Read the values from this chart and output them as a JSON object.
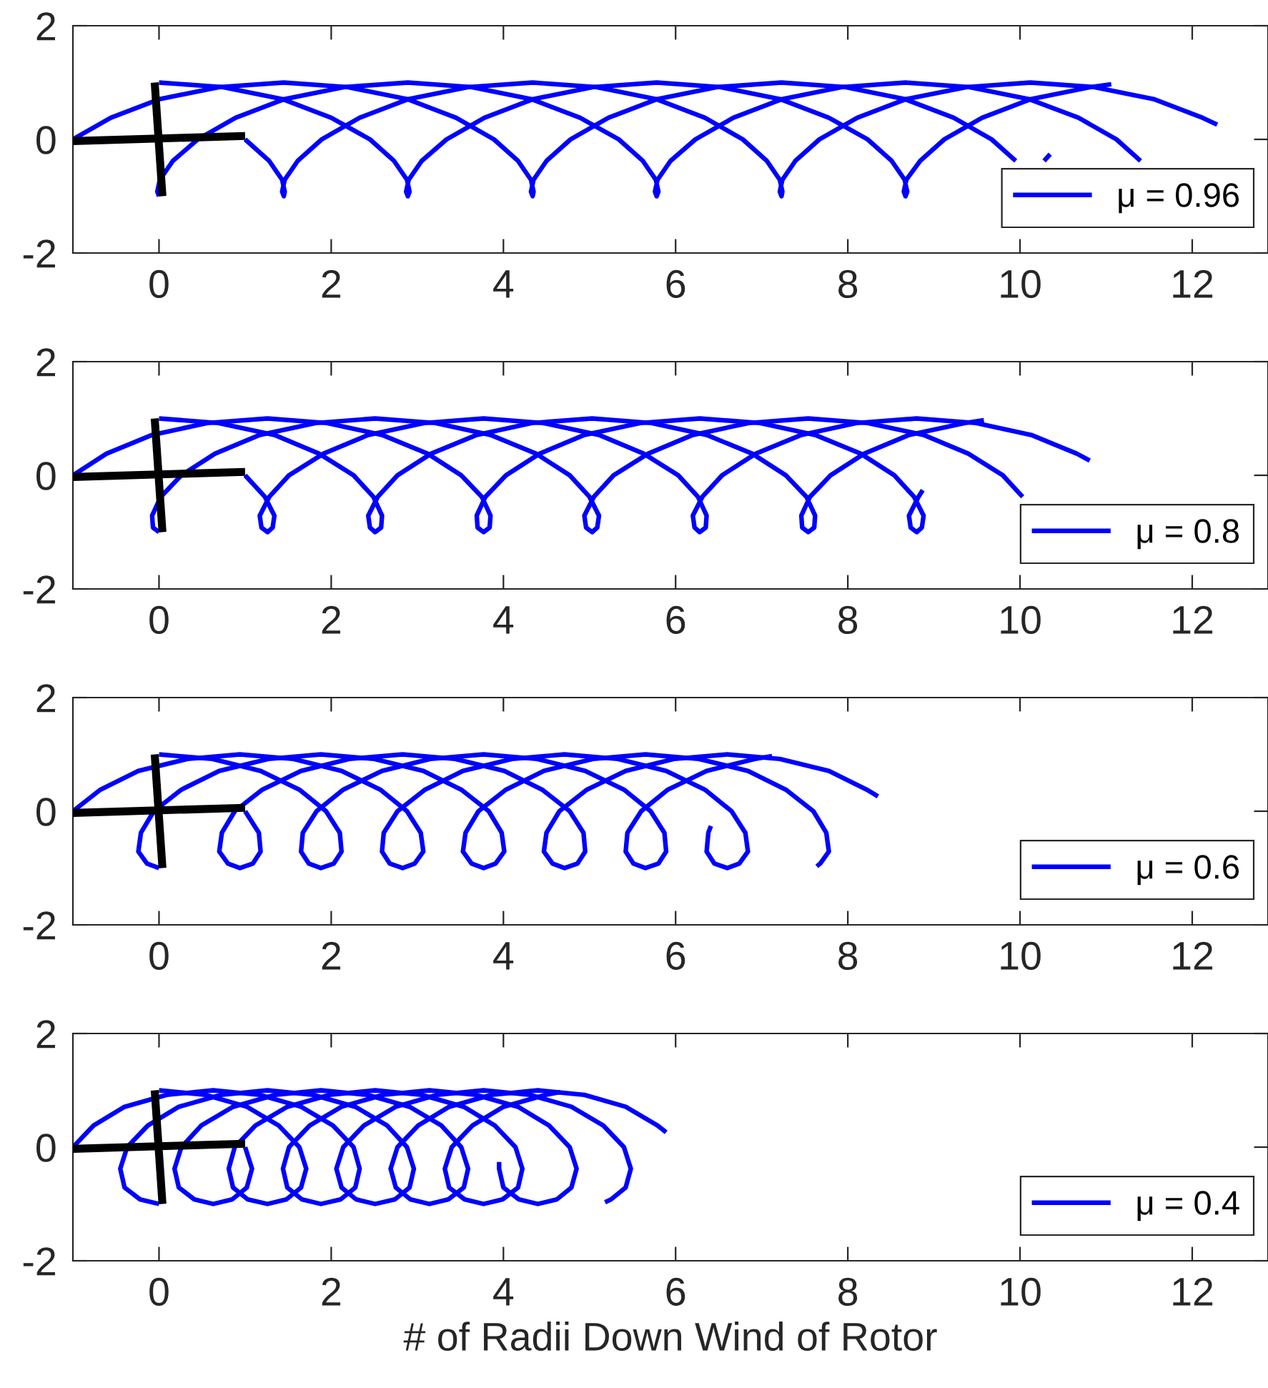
{
  "chart_data": [
    {
      "type": "line",
      "xlim": [
        -1,
        12.88
      ],
      "ylim": [
        -2,
        2
      ],
      "xticks": [
        0,
        2,
        4,
        6,
        8,
        10,
        12
      ],
      "yticks": [
        -2,
        0,
        2
      ],
      "legend": "bottom right",
      "series": [
        {
          "name": "μ = 0.96",
          "color": "#0000ff",
          "x": [
            0,
            0.74,
            1.43,
            2.0,
            2.45,
            2.73,
            2.88,
            2.91,
            2.89,
            2.87,
            2.9,
            3.05,
            3.34,
            3.78,
            4.35,
            5.04,
            5.78,
            6.52,
            7.21,
            7.78,
            8.23,
            8.51,
            8.66,
            8.69,
            8.67,
            8.65,
            8.68,
            8.84,
            9.12,
            9.56,
            10.13,
            10.82,
            11.06
          ],
          "values": [
            1,
            0.92,
            0.71,
            0.38,
            0,
            -0.38,
            -0.71,
            -0.92,
            -1,
            -0.92,
            -0.71,
            -0.38,
            0,
            0.38,
            0.71,
            0.92,
            1,
            0.92,
            0.71,
            0.38,
            0,
            -0.38,
            -0.71,
            -0.92,
            -1,
            -0.92,
            -0.71,
            -0.38,
            0,
            0.38,
            0.71,
            0.92,
            0.97
          ]
        },
        {
          "color": "#0000ff",
          "x": [
            1,
            1.28,
            1.43,
            1.46,
            1.45,
            1.43,
            1.46,
            1.61,
            1.89,
            2.33,
            2.9,
            3.59,
            4.34,
            5.08,
            5.77,
            6.34,
            6.78,
            7.06,
            7.21,
            7.24,
            7.23,
            7.21,
            7.24,
            7.39,
            7.67,
            8.11,
            8.68,
            9.38,
            10.12,
            10.86,
            11.55,
            12.12,
            12.29
          ],
          "values": [
            0,
            -0.38,
            -0.71,
            -0.92,
            -1,
            -0.92,
            -0.71,
            -0.38,
            0,
            0.38,
            0.71,
            0.92,
            1,
            0.92,
            0.71,
            0.38,
            0,
            -0.38,
            -0.71,
            -0.92,
            -1,
            -0.92,
            -0.71,
            -0.38,
            0,
            0.38,
            0.71,
            0.92,
            1,
            0.92,
            0.71,
            0.38,
            0.26
          ]
        },
        {
          "color": "#0000ff",
          "x": [
            0,
            -0.02,
            0.01,
            0.16,
            0.45,
            0.89,
            1.46,
            2.15,
            2.89,
            3.63,
            4.32,
            4.89,
            5.34,
            5.62,
            5.77,
            5.8,
            5.78,
            5.76,
            5.79,
            5.94,
            6.23,
            6.67,
            7.24,
            7.93,
            8.67,
            9.41,
            10.1,
            10.68,
            11.12,
            11.4,
            null,
            null,
            null
          ],
          "values": [
            -1,
            -0.92,
            -0.71,
            -0.38,
            0,
            0.38,
            0.71,
            0.92,
            1,
            0.92,
            0.71,
            0.38,
            0,
            -0.38,
            -0.71,
            -0.92,
            -1,
            -0.92,
            -0.71,
            -0.38,
            0,
            0.38,
            0.71,
            0.92,
            1,
            0.92,
            0.71,
            0.38,
            0,
            -0.38,
            null,
            null,
            null
          ]
        },
        {
          "color": "#0000ff",
          "x": [
            -1,
            -0.56,
            0.01,
            0.7,
            1.45,
            2.19,
            2.88,
            3.45,
            3.89,
            4.17,
            4.32,
            4.35,
            4.34,
            4.32,
            4.35,
            4.5,
            4.78,
            5.22,
            5.79,
            6.48,
            7.23,
            7.97,
            8.66,
            9.23,
            9.67,
            9.95,
            null,
            null,
            null,
            null,
            null,
            10.28,
            10.35
          ],
          "values": [
            0,
            0.38,
            0.71,
            0.92,
            1,
            0.92,
            0.71,
            0.38,
            0,
            -0.38,
            -0.71,
            -0.92,
            -1,
            -0.92,
            -0.71,
            -0.38,
            0,
            0.38,
            0.71,
            0.92,
            1,
            0.92,
            0.71,
            0.38,
            0,
            -0.38,
            null,
            null,
            null,
            null,
            null,
            -0.38,
            -0.26
          ]
        },
        {
          "color": "#000000",
          "x": [
            -1,
            1
          ],
          "values": [
            -0.03,
            0.06
          ]
        },
        {
          "color": "#000000",
          "x": [
            -0.05,
            0.04
          ],
          "values": [
            1,
            -1
          ]
        }
      ]
    },
    {
      "type": "line",
      "xlim": [
        -1,
        12.88
      ],
      "ylim": [
        -2,
        2
      ],
      "xticks": [
        0,
        2,
        4,
        6,
        8,
        10,
        12
      ],
      "yticks": [
        -2,
        0,
        2
      ],
      "legend": "bottom right",
      "series": [
        {
          "name": "μ = 0.8",
          "color": "#0000ff",
          "x": [
            0,
            0.69,
            1.34,
            1.86,
            2.26,
            2.49,
            2.59,
            2.58,
            2.51,
            2.45,
            2.43,
            2.54,
            2.77,
            3.16,
            3.69,
            4.33,
            5.03,
            5.72,
            6.36,
            6.89,
            7.28,
            7.52,
            7.62,
            7.61,
            7.54,
            7.47,
            7.46,
            7.56,
            7.8,
            8.19,
            8.71,
            9.36,
            9.58
          ],
          "values": [
            1,
            0.92,
            0.71,
            0.38,
            0,
            -0.38,
            -0.71,
            -0.92,
            -1,
            -0.92,
            -0.71,
            -0.38,
            0,
            0.38,
            0.71,
            0.92,
            1,
            0.92,
            0.71,
            0.38,
            0,
            -0.38,
            -0.71,
            -0.92,
            -1,
            -0.92,
            -0.71,
            -0.38,
            0,
            0.38,
            0.71,
            0.92,
            0.97
          ]
        },
        {
          "color": "#0000ff",
          "x": [
            1,
            1.23,
            1.34,
            1.32,
            1.26,
            1.19,
            1.17,
            1.28,
            1.51,
            1.91,
            2.43,
            3.08,
            3.77,
            4.46,
            5.11,
            5.63,
            6.03,
            6.26,
            6.36,
            6.35,
            6.28,
            6.22,
            6.2,
            6.31,
            6.54,
            6.93,
            7.46,
            8.1,
            8.8,
            9.49,
            10.13,
            10.66,
            10.81
          ],
          "values": [
            0,
            -0.38,
            -0.71,
            -0.92,
            -1,
            -0.92,
            -0.71,
            -0.38,
            0,
            0.38,
            0.71,
            0.92,
            1,
            0.92,
            0.71,
            0.38,
            0,
            -0.38,
            -0.71,
            -0.92,
            -1,
            -0.92,
            -0.71,
            -0.38,
            0,
            0.38,
            0.71,
            0.92,
            1,
            0.92,
            0.71,
            0.38,
            0.26
          ]
        },
        {
          "color": "#0000ff",
          "x": [
            0,
            -0.07,
            -0.08,
            0.02,
            0.26,
            0.65,
            1.17,
            1.82,
            2.51,
            3.21,
            3.85,
            4.38,
            4.77,
            5.0,
            5.11,
            5.09,
            5.03,
            4.96,
            4.94,
            5.05,
            5.28,
            5.68,
            6.2,
            6.85,
            7.54,
            8.23,
            8.88,
            9.4,
            9.8,
            10.03,
            null,
            null,
            null
          ],
          "values": [
            -1,
            -0.92,
            -0.71,
            -0.38,
            0,
            0.38,
            0.71,
            0.92,
            1,
            0.92,
            0.71,
            0.38,
            0,
            -0.38,
            -0.71,
            -0.92,
            -1,
            -0.92,
            -0.71,
            -0.38,
            0,
            0.38,
            0.71,
            0.92,
            1,
            0.92,
            0.71,
            0.38,
            0,
            -0.38,
            null,
            null,
            null
          ]
        },
        {
          "color": "#0000ff",
          "x": [
            -1,
            -0.61,
            -0.08,
            0.56,
            1.26,
            1.95,
            2.59,
            3.12,
            3.51,
            3.75,
            3.85,
            3.84,
            3.77,
            3.7,
            3.69,
            3.79,
            4.03,
            4.42,
            4.94,
            5.59,
            6.28,
            6.98,
            7.62,
            8.15,
            8.54,
            8.77,
            8.88,
            8.86,
            8.8,
            8.73,
            8.71,
            8.82,
            8.87
          ],
          "values": [
            0,
            0.38,
            0.71,
            0.92,
            1,
            0.92,
            0.71,
            0.38,
            0,
            -0.38,
            -0.71,
            -0.92,
            -1,
            -0.92,
            -0.71,
            -0.38,
            0,
            0.38,
            0.71,
            0.92,
            1,
            0.92,
            0.71,
            0.38,
            0,
            -0.38,
            -0.71,
            -0.92,
            -1,
            -0.92,
            -0.71,
            -0.38,
            -0.26
          ]
        },
        {
          "color": "#000000",
          "x": [
            -1,
            1
          ],
          "values": [
            -0.03,
            0.06
          ]
        },
        {
          "color": "#000000",
          "x": [
            -0.05,
            0.04
          ],
          "values": [
            1,
            -1
          ]
        }
      ]
    },
    {
      "type": "line",
      "xlim": [
        -1,
        12.88
      ],
      "ylim": [
        -2,
        2
      ],
      "xticks": [
        0,
        2,
        4,
        6,
        8,
        10,
        12
      ],
      "yticks": [
        -2,
        0,
        2
      ],
      "legend": "bottom right",
      "series": [
        {
          "name": "μ = 0.6",
          "color": "#0000ff",
          "x": [
            0,
            0.62,
            1.18,
            1.63,
            1.94,
            2.1,
            2.12,
            2.03,
            1.88,
            1.74,
            1.65,
            1.67,
            1.83,
            2.14,
            2.59,
            3.15,
            3.77,
            4.39,
            4.95,
            5.4,
            5.71,
            5.87,
            5.89,
            5.8,
            5.65,
            5.51,
            5.42,
            5.44,
            5.6,
            5.91,
            6.36,
            6.92,
            7.12
          ],
          "values": [
            1,
            0.92,
            0.71,
            0.38,
            0,
            -0.38,
            -0.71,
            -0.92,
            -1,
            -0.92,
            -0.71,
            -0.38,
            0,
            0.38,
            0.71,
            0.92,
            1,
            0.92,
            0.71,
            0.38,
            0,
            -0.38,
            -0.71,
            -0.92,
            -1,
            -0.92,
            -0.71,
            -0.38,
            0,
            0.38,
            0.71,
            0.92,
            0.97
          ]
        },
        {
          "color": "#0000ff",
          "x": [
            1,
            1.16,
            1.18,
            1.09,
            0.94,
            0.8,
            0.7,
            0.73,
            0.88,
            1.2,
            1.65,
            2.21,
            2.83,
            3.44,
            4.01,
            4.45,
            4.77,
            4.93,
            4.95,
            4.86,
            4.71,
            4.57,
            4.47,
            4.5,
            4.65,
            4.97,
            5.42,
            5.98,
            6.6,
            7.21,
            7.78,
            8.22,
            8.35
          ],
          "values": [
            0,
            -0.38,
            -0.71,
            -0.92,
            -1,
            -0.92,
            -0.71,
            -0.38,
            0,
            0.38,
            0.71,
            0.92,
            1,
            0.92,
            0.71,
            0.38,
            0,
            -0.38,
            -0.71,
            -0.92,
            -1,
            -0.92,
            -0.71,
            -0.38,
            0,
            0.38,
            0.71,
            0.92,
            1,
            0.92,
            0.71,
            0.38,
            0.26
          ]
        },
        {
          "color": "#0000ff",
          "x": [
            0,
            -0.14,
            -0.24,
            -0.21,
            -0.06,
            0.26,
            0.7,
            1.27,
            1.88,
            2.5,
            3.07,
            3.51,
            3.83,
            3.98,
            4.01,
            3.91,
            3.77,
            3.63,
            3.53,
            3.56,
            3.71,
            4.03,
            4.47,
            5.04,
            5.65,
            6.27,
            6.84,
            7.28,
            7.6,
            7.75,
            7.78,
            7.68,
            7.64
          ],
          "values": [
            -1,
            -0.92,
            -0.71,
            -0.38,
            0,
            0.38,
            0.71,
            0.92,
            1,
            0.92,
            0.71,
            0.38,
            0,
            -0.38,
            -0.71,
            -0.92,
            -1,
            -0.92,
            -0.71,
            -0.38,
            0,
            0.38,
            0.71,
            0.92,
            1,
            0.92,
            0.71,
            0.38,
            0,
            -0.38,
            -0.71,
            -0.92,
            -0.97
          ]
        },
        {
          "color": "#0000ff",
          "x": [
            -1,
            -0.68,
            -0.24,
            0.33,
            0.94,
            1.56,
            2.12,
            2.57,
            2.88,
            3.04,
            3.07,
            2.97,
            2.83,
            2.68,
            2.59,
            2.61,
            2.77,
            3.09,
            3.53,
            4.1,
            4.71,
            5.33,
            5.89,
            6.34,
            6.65,
            6.81,
            6.84,
            6.74,
            6.6,
            6.45,
            6.36,
            6.38,
            6.41
          ],
          "values": [
            0,
            0.38,
            0.71,
            0.92,
            1,
            0.92,
            0.71,
            0.38,
            0,
            -0.38,
            -0.71,
            -0.92,
            -1,
            -0.92,
            -0.71,
            -0.38,
            0,
            0.38,
            0.71,
            0.92,
            1,
            0.92,
            0.71,
            0.38,
            0,
            -0.38,
            -0.71,
            -0.92,
            -1,
            -0.92,
            -0.71,
            -0.38,
            -0.26
          ]
        },
        {
          "color": "#000000",
          "x": [
            -1,
            1
          ],
          "values": [
            -0.03,
            0.06
          ]
        },
        {
          "color": "#000000",
          "x": [
            -0.05,
            0.04
          ],
          "values": [
            1,
            -1
          ]
        }
      ]
    },
    {
      "type": "line",
      "xlim": [
        -1,
        12.88
      ],
      "ylim": [
        -2,
        2
      ],
      "xticks": [
        0,
        2,
        4,
        6,
        8,
        10,
        12
      ],
      "yticks": [
        -2,
        0,
        2
      ],
      "legend": "bottom right",
      "xlabel": "# of Radii Down Wind of Rotor",
      "series": [
        {
          "name": "μ = 0.4",
          "color": "#0000ff",
          "x": [
            0,
            0.54,
            1.02,
            1.39,
            1.63,
            1.71,
            1.65,
            1.48,
            1.26,
            1.03,
            0.86,
            0.81,
            0.88,
            1.12,
            1.49,
            1.98,
            2.51,
            3.05,
            3.54,
            3.9,
            4.14,
            4.22,
            4.17,
            3.99,
            3.77,
            3.55,
            3.37,
            3.32,
            3.4,
            3.64,
            4.0,
            4.49,
            4.66
          ],
          "values": [
            1,
            0.92,
            0.71,
            0.38,
            0,
            -0.38,
            -0.71,
            -0.92,
            -1,
            -0.92,
            -0.71,
            -0.38,
            0,
            0.38,
            0.71,
            0.92,
            1,
            0.92,
            0.71,
            0.38,
            0,
            -0.38,
            -0.71,
            -0.92,
            -1,
            -0.92,
            -0.71,
            -0.38,
            0,
            0.38,
            0.71,
            0.92,
            0.97
          ]
        },
        {
          "color": "#0000ff",
          "x": [
            1,
            1.08,
            1.02,
            0.85,
            0.63,
            0.41,
            0.23,
            0.18,
            0.26,
            0.49,
            0.86,
            1.35,
            1.88,
            2.42,
            2.91,
            3.28,
            3.51,
            3.59,
            3.54,
            3.36,
            3.14,
            2.92,
            2.75,
            2.69,
            2.77,
            3.01,
            3.37,
            3.86,
            4.4,
            4.94,
            5.42,
            5.79,
            5.89
          ],
          "values": [
            0,
            -0.38,
            -0.71,
            -0.92,
            -1,
            -0.92,
            -0.71,
            -0.38,
            0,
            0.38,
            0.71,
            0.92,
            1,
            0.92,
            0.71,
            0.38,
            0,
            -0.38,
            -0.71,
            -0.92,
            -1,
            -0.92,
            -0.71,
            -0.38,
            0,
            0.38,
            0.71,
            0.92,
            1,
            0.92,
            0.71,
            0.38,
            0.26
          ]
        },
        {
          "color": "#0000ff",
          "x": [
            0,
            -0.22,
            -0.4,
            -0.45,
            -0.37,
            -0.13,
            0.23,
            0.72,
            1.26,
            1.79,
            2.28,
            2.65,
            2.88,
            2.96,
            2.91,
            2.74,
            2.51,
            2.29,
            2.12,
            2.06,
            2.14,
            2.38,
            2.75,
            3.23,
            3.77,
            4.31,
            4.79,
            5.16,
            5.4,
            5.48,
            5.42,
            5.25,
            5.18
          ],
          "values": [
            -1,
            -0.92,
            -0.71,
            -0.38,
            0,
            0.38,
            0.71,
            0.92,
            1,
            0.92,
            0.71,
            0.38,
            0,
            -0.38,
            -0.71,
            -0.92,
            -1,
            -0.92,
            -0.71,
            -0.38,
            0,
            0.38,
            0.71,
            0.92,
            1,
            0.92,
            0.71,
            0.38,
            0,
            -0.38,
            -0.71,
            -0.92,
            -0.97
          ]
        },
        {
          "color": "#0000ff",
          "x": [
            -1,
            -0.76,
            -0.4,
            0.09,
            0.63,
            1.17,
            1.65,
            2.02,
            2.26,
            2.33,
            2.28,
            2.11,
            1.88,
            1.66,
            1.49,
            1.44,
            1.51,
            1.75,
            2.12,
            2.6,
            3.14,
            3.68,
            4.17,
            4.53,
            4.77,
            4.85,
            4.79,
            4.62,
            4.4,
            4.18,
            4.0,
            3.95,
            3.95
          ],
          "values": [
            0,
            0.38,
            0.71,
            0.92,
            1,
            0.92,
            0.71,
            0.38,
            0,
            -0.38,
            -0.71,
            -0.92,
            -1,
            -0.92,
            -0.71,
            -0.38,
            0,
            0.38,
            0.71,
            0.92,
            1,
            0.92,
            0.71,
            0.38,
            0,
            -0.38,
            -0.71,
            -0.92,
            -1,
            -0.92,
            -0.71,
            -0.38,
            -0.26
          ]
        },
        {
          "color": "#000000",
          "x": [
            -1,
            1
          ],
          "values": [
            -0.03,
            0.06
          ]
        },
        {
          "color": "#000000",
          "x": [
            -0.05,
            0.04
          ],
          "values": [
            1,
            -1
          ]
        }
      ]
    }
  ]
}
